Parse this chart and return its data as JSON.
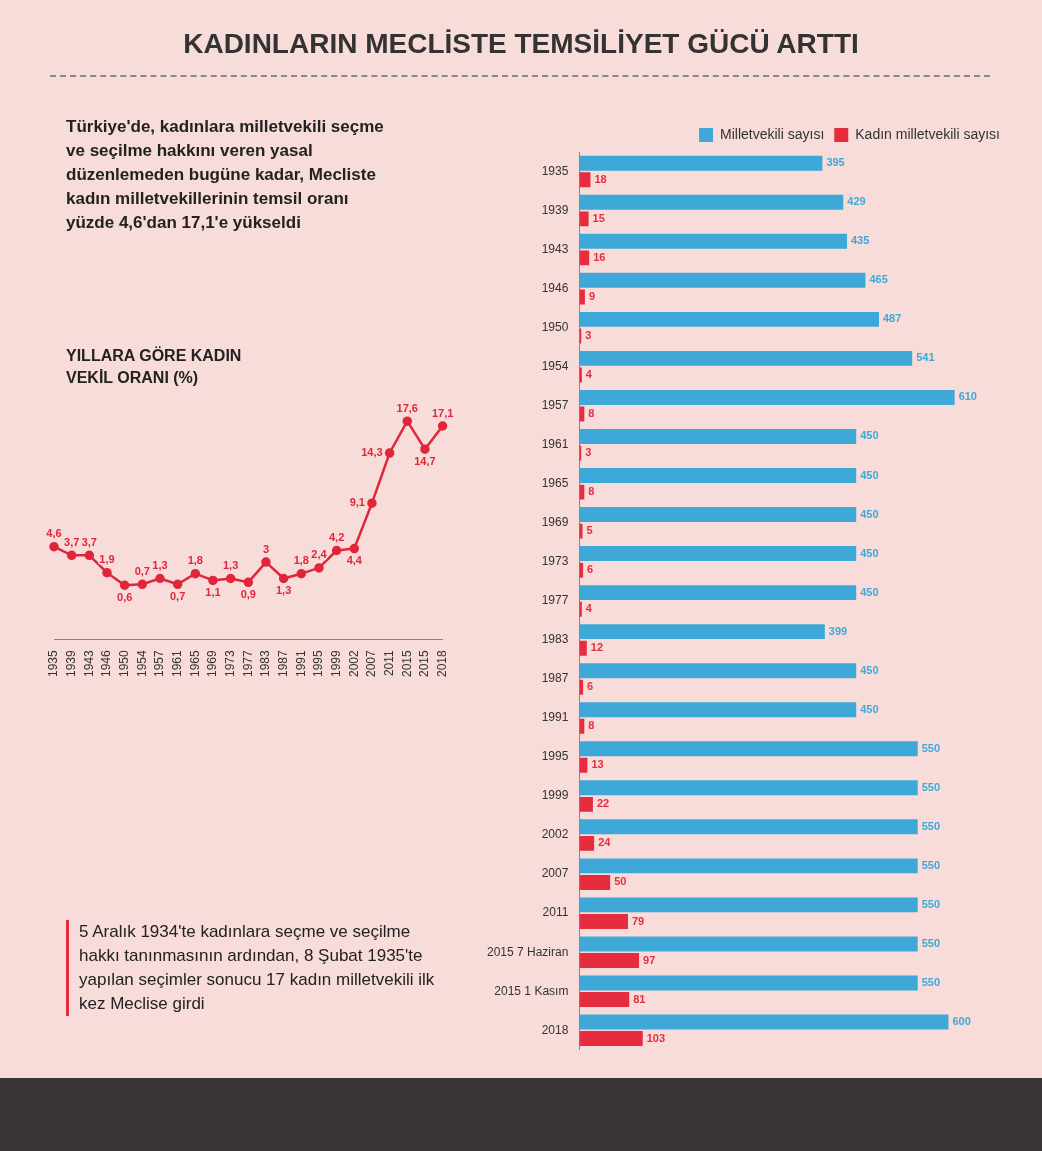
{
  "chart_data": [
    {
      "type": "bar",
      "orientation": "horizontal",
      "title": "KADINLARIN MECLİSTE TEMSİLİYET GÜCÜ ARTTI",
      "categories": [
        "1935",
        "1939",
        "1943",
        "1946",
        "1950",
        "1954",
        "1957",
        "1961",
        "1965",
        "1969",
        "1973",
        "1977",
        "1983",
        "1987",
        "1991",
        "1995",
        "1999",
        "2002",
        "2007",
        "2011",
        "2015 7 Haziran",
        "2015 1 Kasım",
        "2018"
      ],
      "series": [
        {
          "name": "Milletvekili sayısı",
          "color": "#3ea9d9",
          "values": [
            395,
            429,
            435,
            465,
            487,
            541,
            610,
            450,
            450,
            450,
            450,
            450,
            399,
            450,
            450,
            550,
            550,
            550,
            550,
            550,
            550,
            550,
            600
          ]
        },
        {
          "name": "Kadın milletvekili sayısı",
          "color": "#e62d3f",
          "values": [
            18,
            15,
            16,
            9,
            3,
            4,
            8,
            3,
            8,
            5,
            6,
            4,
            12,
            6,
            8,
            13,
            22,
            24,
            50,
            79,
            97,
            81,
            103
          ]
        }
      ],
      "data_labels": true,
      "legend": "top right",
      "grid": false,
      "annotations": [
        "5 Aralık 1934'te kadınlara seçme ve seçilme hakkı tanınmasının ardından, 8 Şubat 1935'te yapılan seçimler sonucu 17 kadın milletvekili ilk kez Meclise girdi"
      ]
    },
    {
      "type": "line",
      "title": "YILLARA GÖRE KADIN VEKİL ORANI (%)",
      "subtitle": "Türkiye'de, kadınlara milletvekili seçme ve seçilme hakkını veren yasal düzenlemeden bugüne kadar, Mecliste kadın milletvekillerinin temsil oranı yüzde 4,6'dan 17,1'e yükseldi",
      "categories": [
        "1935",
        "1939",
        "1943",
        "1946",
        "1950",
        "1954",
        "1957",
        "1961",
        "1965",
        "1969",
        "1973",
        "1977",
        "1983",
        "1987",
        "1991",
        "1995",
        "1999",
        "2002",
        "2007",
        "2011",
        "2015",
        "2015",
        "2018"
      ],
      "values": [
        4.6,
        3.7,
        3.7,
        1.9,
        0.6,
        0.7,
        1.3,
        0.7,
        1.8,
        1.1,
        1.3,
        0.9,
        3,
        1.3,
        1.8,
        2.4,
        4.2,
        4.4,
        9.1,
        14.3,
        17.6,
        14.7,
        17.1
      ],
      "value_labels": [
        "4,6",
        "3,7",
        "3,7",
        "1,9",
        "0,6",
        "0,7",
        "1,3",
        "0,7",
        "1,8",
        "1,1",
        "1,3",
        "0,9",
        "3",
        "1,3",
        "1,8",
        "2,4",
        "4,2",
        "4,4",
        "9,1",
        "14,3",
        "17,6",
        "14,7",
        "17,1"
      ],
      "color": "#e0263b",
      "marker": "circle",
      "grid": false,
      "tick_labels": "x",
      "legend": false
    }
  ]
}
